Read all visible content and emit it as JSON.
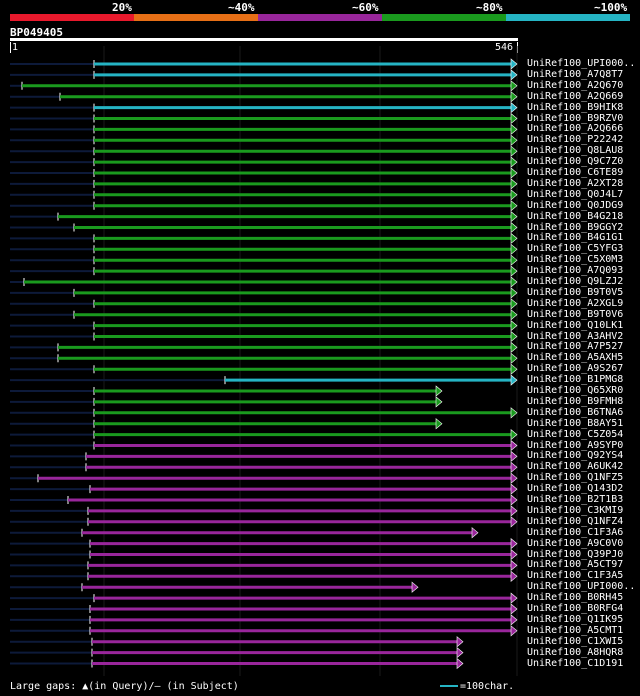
{
  "legend": {
    "labels": [
      "20%",
      "~40%",
      "~60%",
      "~80%",
      "~100%"
    ],
    "colors": [
      "#e8192c",
      "#e66f16",
      "#99269b",
      "#1a9a1e",
      "#25b4c4"
    ]
  },
  "query": {
    "id": "BP049405",
    "start": "1",
    "end": "546"
  },
  "hits": [
    {
      "label": "UniRef100_UPI000..",
      "color": "#25b4c4",
      "q": [
        94,
        517
      ]
    },
    {
      "label": "UniRef100_A7Q8T7",
      "color": "#25b4c4",
      "q": [
        94,
        517
      ]
    },
    {
      "label": "UniRef100_A2Q670",
      "color": "#1a9a1e",
      "q": [
        22,
        517
      ]
    },
    {
      "label": "UniRef100_A2Q669",
      "color": "#1a9a1e",
      "q": [
        60,
        517
      ]
    },
    {
      "label": "UniRef100_B9HIK8",
      "color": "#25b4c4",
      "q": [
        94,
        517
      ]
    },
    {
      "label": "UniRef100_B9RZV0",
      "color": "#1a9a1e",
      "q": [
        94,
        517
      ]
    },
    {
      "label": "UniRef100_A2Q666",
      "color": "#1a9a1e",
      "q": [
        94,
        517
      ]
    },
    {
      "label": "UniRef100_P22242",
      "color": "#1a9a1e",
      "q": [
        94,
        517
      ]
    },
    {
      "label": "UniRef100_Q8LAU8",
      "color": "#1a9a1e",
      "q": [
        94,
        517
      ]
    },
    {
      "label": "UniRef100_Q9C7Z0",
      "color": "#1a9a1e",
      "q": [
        94,
        517
      ]
    },
    {
      "label": "UniRef100_C6TE89",
      "color": "#1a9a1e",
      "q": [
        94,
        517
      ]
    },
    {
      "label": "UniRef100_A2XT28",
      "color": "#1a9a1e",
      "q": [
        94,
        517
      ]
    },
    {
      "label": "UniRef100_Q0J4L7",
      "color": "#1a9a1e",
      "q": [
        94,
        517
      ]
    },
    {
      "label": "UniRef100_Q0JDG9",
      "color": "#1a9a1e",
      "q": [
        94,
        517
      ]
    },
    {
      "label": "UniRef100_B4G218",
      "color": "#1a9a1e",
      "q": [
        58,
        517
      ]
    },
    {
      "label": "UniRef100_B9GGY2",
      "color": "#1a9a1e",
      "q": [
        74,
        517
      ]
    },
    {
      "label": "UniRef100_B4G1G1",
      "color": "#1a9a1e",
      "q": [
        94,
        517
      ]
    },
    {
      "label": "UniRef100_C5YFG3",
      "color": "#1a9a1e",
      "q": [
        94,
        517
      ]
    },
    {
      "label": "UniRef100_C5X0M3",
      "color": "#1a9a1e",
      "q": [
        94,
        517
      ]
    },
    {
      "label": "UniRef100_A7Q093",
      "color": "#1a9a1e",
      "q": [
        94,
        517
      ]
    },
    {
      "label": "UniRef100_Q9LZJ2",
      "color": "#1a9a1e",
      "q": [
        24,
        517
      ]
    },
    {
      "label": "UniRef100_B9T0V5",
      "color": "#1a9a1e",
      "q": [
        74,
        517
      ]
    },
    {
      "label": "UniRef100_A2XGL9",
      "color": "#1a9a1e",
      "q": [
        94,
        517
      ]
    },
    {
      "label": "UniRef100_B9T0V6",
      "color": "#1a9a1e",
      "q": [
        74,
        517
      ]
    },
    {
      "label": "UniRef100_Q10LK1",
      "color": "#1a9a1e",
      "q": [
        94,
        517
      ]
    },
    {
      "label": "UniRef100_A3AHV2",
      "color": "#1a9a1e",
      "q": [
        94,
        517
      ]
    },
    {
      "label": "UniRef100_A7P527",
      "color": "#1a9a1e",
      "q": [
        58,
        517
      ]
    },
    {
      "label": "UniRef100_A5AXH5",
      "color": "#1a9a1e",
      "q": [
        58,
        517
      ]
    },
    {
      "label": "UniRef100_A9S267",
      "color": "#1a9a1e",
      "q": [
        94,
        517
      ]
    },
    {
      "label": "UniRef100_B1PMG8",
      "color": "#25b4c4",
      "q": [
        225,
        517
      ]
    },
    {
      "label": "UniRef100_Q65XR0",
      "color": "#1a9a1e",
      "q": [
        94,
        442
      ]
    },
    {
      "label": "UniRef100_B9FMH8",
      "color": "#1a9a1e",
      "q": [
        94,
        442
      ]
    },
    {
      "label": "UniRef100_B6TNA6",
      "color": "#1a9a1e",
      "q": [
        94,
        517
      ]
    },
    {
      "label": "UniRef100_B8AY51",
      "color": "#1a9a1e",
      "q": [
        94,
        442
      ]
    },
    {
      "label": "UniRef100_C5Z054",
      "color": "#1a9a1e",
      "q": [
        94,
        517
      ]
    },
    {
      "label": "UniRef100_A9SYP0",
      "color": "#99269b",
      "q": [
        94,
        517
      ]
    },
    {
      "label": "UniRef100_Q92YS4",
      "color": "#99269b",
      "q": [
        86,
        517
      ]
    },
    {
      "label": "UniRef100_A6UK42",
      "color": "#99269b",
      "q": [
        86,
        517
      ]
    },
    {
      "label": "UniRef100_Q1NFZ5",
      "color": "#99269b",
      "q": [
        38,
        517
      ]
    },
    {
      "label": "UniRef100_Q143D2",
      "color": "#99269b",
      "q": [
        90,
        517
      ]
    },
    {
      "label": "UniRef100_B2T1B3",
      "color": "#99269b",
      "q": [
        68,
        517
      ]
    },
    {
      "label": "UniRef100_C3KMI9",
      "color": "#99269b",
      "q": [
        88,
        517
      ]
    },
    {
      "label": "UniRef100_Q1NFZ4",
      "color": "#99269b",
      "q": [
        88,
        517
      ]
    },
    {
      "label": "UniRef100_C1F3A6",
      "color": "#99269b",
      "q": [
        82,
        478
      ]
    },
    {
      "label": "UniRef100_A9C0V0",
      "color": "#99269b",
      "q": [
        90,
        517
      ]
    },
    {
      "label": "UniRef100_Q39PJ0",
      "color": "#99269b",
      "q": [
        90,
        517
      ]
    },
    {
      "label": "UniRef100_A5CT97",
      "color": "#99269b",
      "q": [
        88,
        517
      ]
    },
    {
      "label": "UniRef100_C1F3A5",
      "color": "#99269b",
      "q": [
        88,
        517
      ]
    },
    {
      "label": "UniRef100_UPI000..",
      "color": "#99269b",
      "q": [
        82,
        418
      ]
    },
    {
      "label": "UniRef100_B0RH45",
      "color": "#99269b",
      "q": [
        94,
        517
      ]
    },
    {
      "label": "UniRef100_B0RFG4",
      "color": "#99269b",
      "q": [
        90,
        517
      ]
    },
    {
      "label": "UniRef100_Q1IK95",
      "color": "#99269b",
      "q": [
        90,
        517
      ]
    },
    {
      "label": "UniRef100_A5CMT1",
      "color": "#99269b",
      "q": [
        90,
        517
      ]
    },
    {
      "label": "UniRef100_C1XWI5",
      "color": "#99269b",
      "q": [
        92,
        463
      ]
    },
    {
      "label": "UniRef100_A8HQR8",
      "color": "#99269b",
      "q": [
        92,
        463
      ]
    },
    {
      "label": "UniRef100_C1D191",
      "color": "#99269b",
      "q": [
        92,
        463
      ]
    }
  ],
  "footer": {
    "gap_text": "Large gaps: ▲(in Query)/– (in Subject)",
    "scale_text": "=100char."
  }
}
